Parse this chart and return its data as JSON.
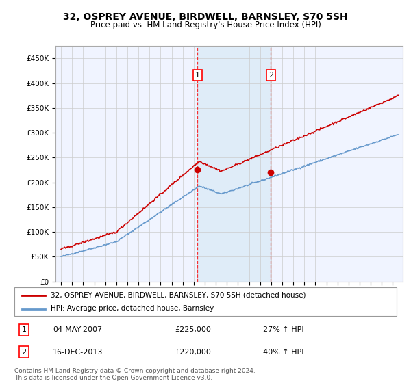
{
  "title": "32, OSPREY AVENUE, BIRDWELL, BARNSLEY, S70 5SH",
  "subtitle": "Price paid vs. HM Land Registry's House Price Index (HPI)",
  "red_label": "32, OSPREY AVENUE, BIRDWELL, BARNSLEY, S70 5SH (detached house)",
  "blue_label": "HPI: Average price, detached house, Barnsley",
  "sale1_date": "04-MAY-2007",
  "sale1_price": 225000,
  "sale1_pct": "27%",
  "sale2_date": "16-DEC-2013",
  "sale2_price": 220000,
  "sale2_pct": "40%",
  "footer": "Contains HM Land Registry data © Crown copyright and database right 2024.\nThis data is licensed under the Open Government Licence v3.0.",
  "ylim": [
    0,
    475000
  ],
  "yticks": [
    0,
    50000,
    100000,
    150000,
    200000,
    250000,
    300000,
    350000,
    400000,
    450000
  ],
  "background_color": "#ffffff",
  "grid_color": "#cccccc",
  "sale1_x": 2007.34,
  "sale2_x": 2013.96
}
